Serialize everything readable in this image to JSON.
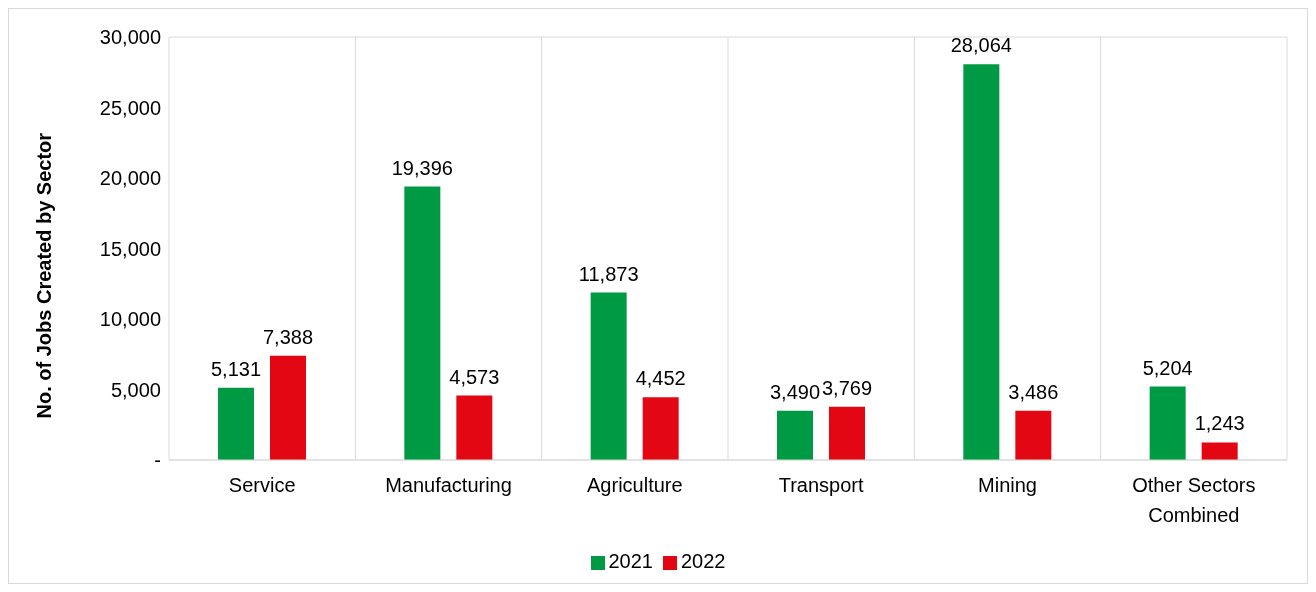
{
  "chart_data": {
    "type": "bar",
    "ylabel": "No. of Jobs Created by Sector",
    "categories": [
      "Service",
      "Manufacturing",
      "Agriculture",
      "Transport",
      "Mining",
      "Other Sectors Combined"
    ],
    "series": [
      {
        "name": "2021",
        "color": "#009a44",
        "values": [
          5131,
          19396,
          11873,
          3490,
          28064,
          5204
        ],
        "value_labels": [
          "5,131",
          "19,396",
          "11,873",
          "3,490",
          "28,064",
          "5,204"
        ]
      },
      {
        "name": "2022",
        "color": "#e30613",
        "values": [
          7388,
          4573,
          4452,
          3769,
          3486,
          1243
        ],
        "value_labels": [
          "7,388",
          "4,573",
          "4,452",
          "3,769",
          "3,486",
          "1,243"
        ]
      }
    ],
    "ylim": [
      0,
      30000
    ],
    "yticks": [
      {
        "value": 0,
        "label": "-"
      },
      {
        "value": 5000,
        "label": "5,000"
      },
      {
        "value": 10000,
        "label": "10,000"
      },
      {
        "value": 15000,
        "label": "15,000"
      },
      {
        "value": 20000,
        "label": "20,000"
      },
      {
        "value": 25000,
        "label": "25,000"
      },
      {
        "value": 30000,
        "label": "30,000"
      }
    ],
    "grid": true,
    "legend": "bottom"
  }
}
